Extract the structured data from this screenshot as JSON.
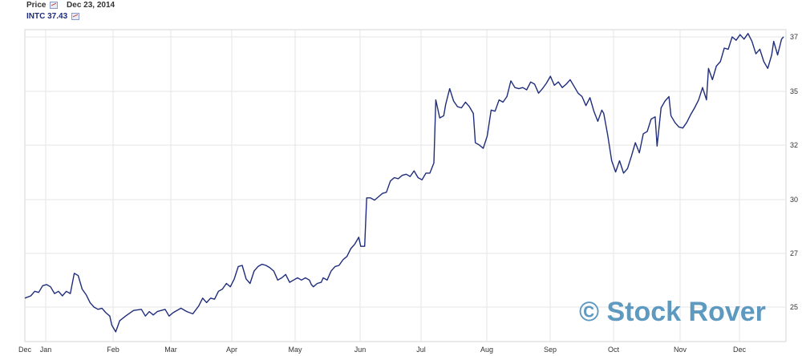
{
  "header": {
    "price_label": "Price",
    "date": "Dec 23, 2014",
    "ticker_label": "INTC 37.43"
  },
  "watermark": "© Stock Rover",
  "colors": {
    "line": "#1f2d7a",
    "grid": "#e6e6e6",
    "axis_text": "#333333",
    "watermark": "#5e99bf"
  },
  "chart_data": {
    "type": "line",
    "title": "",
    "xlabel": "",
    "ylabel": "",
    "ylim": [
      23.8,
      37.25
    ],
    "x_ticks": [
      "Dec",
      "Jan",
      "Feb",
      "Mar",
      "Apr",
      "May",
      "Jun",
      "Jul",
      "Aug",
      "Sep",
      "Oct",
      "Nov",
      "Dec"
    ],
    "y_ticks": [
      25,
      27,
      30,
      32,
      35,
      37
    ],
    "grid": true,
    "series": [
      {
        "name": "INTC",
        "points": [
          [
            0,
            25.4
          ],
          [
            3,
            25.5
          ],
          [
            5,
            25.7
          ],
          [
            7,
            25.65
          ],
          [
            9,
            25.95
          ],
          [
            11,
            26.0
          ],
          [
            13,
            25.9
          ],
          [
            15,
            25.6
          ],
          [
            17,
            25.7
          ],
          [
            19,
            25.5
          ],
          [
            21,
            25.7
          ],
          [
            23,
            25.6
          ],
          [
            25,
            26.5
          ],
          [
            27,
            26.4
          ],
          [
            29,
            25.8
          ],
          [
            31,
            25.55
          ],
          [
            33,
            25.2
          ],
          [
            35,
            25.0
          ],
          [
            37,
            24.9
          ],
          [
            39,
            24.95
          ],
          [
            41,
            24.75
          ],
          [
            43,
            24.6
          ],
          [
            44,
            24.2
          ],
          [
            46,
            23.9
          ],
          [
            48,
            24.4
          ],
          [
            51,
            24.6
          ],
          [
            55,
            24.85
          ],
          [
            59,
            24.9
          ],
          [
            61,
            24.6
          ],
          [
            63,
            24.8
          ],
          [
            65,
            24.65
          ],
          [
            67,
            24.8
          ],
          [
            71,
            24.9
          ],
          [
            73,
            24.6
          ],
          [
            75,
            24.75
          ],
          [
            79,
            24.95
          ],
          [
            82,
            24.8
          ],
          [
            85,
            24.7
          ],
          [
            88,
            25.05
          ],
          [
            90,
            25.4
          ],
          [
            92,
            25.2
          ],
          [
            94,
            25.4
          ],
          [
            96,
            25.35
          ],
          [
            98,
            25.7
          ],
          [
            100,
            25.8
          ],
          [
            102,
            26.05
          ],
          [
            104,
            25.9
          ],
          [
            106,
            26.25
          ],
          [
            108,
            26.8
          ],
          [
            110,
            26.85
          ],
          [
            112,
            26.25
          ],
          [
            114,
            26.05
          ],
          [
            116,
            26.6
          ],
          [
            118,
            26.8
          ],
          [
            120,
            26.9
          ],
          [
            122,
            26.85
          ],
          [
            124,
            26.75
          ],
          [
            126,
            26.6
          ],
          [
            128,
            26.2
          ],
          [
            130,
            26.3
          ],
          [
            132,
            26.45
          ],
          [
            134,
            26.1
          ],
          [
            136,
            26.2
          ],
          [
            138,
            26.3
          ],
          [
            140,
            26.2
          ],
          [
            142,
            26.3
          ],
          [
            144,
            26.2
          ],
          [
            145,
            26.0
          ],
          [
            146,
            25.9
          ],
          [
            148,
            26.05
          ],
          [
            150,
            26.1
          ],
          [
            151,
            26.3
          ],
          [
            153,
            26.2
          ],
          [
            155,
            26.6
          ],
          [
            157,
            26.8
          ],
          [
            159,
            26.85
          ],
          [
            161,
            27.1
          ],
          [
            163,
            27.25
          ],
          [
            165,
            27.6
          ],
          [
            167,
            27.8
          ],
          [
            169,
            28.1
          ],
          [
            170,
            27.7
          ],
          [
            172,
            27.7
          ],
          [
            173,
            29.85
          ],
          [
            175,
            29.85
          ],
          [
            177,
            29.75
          ],
          [
            179,
            29.9
          ],
          [
            181,
            30.05
          ],
          [
            183,
            30.1
          ],
          [
            185,
            30.6
          ],
          [
            187,
            30.75
          ],
          [
            189,
            30.7
          ],
          [
            191,
            30.85
          ],
          [
            193,
            30.9
          ],
          [
            195,
            30.8
          ],
          [
            197,
            31.05
          ],
          [
            199,
            30.75
          ],
          [
            201,
            30.65
          ],
          [
            203,
            30.95
          ],
          [
            205,
            30.95
          ],
          [
            207,
            31.4
          ],
          [
            208,
            34.2
          ],
          [
            210,
            33.4
          ],
          [
            212,
            33.5
          ],
          [
            213,
            34.0
          ],
          [
            215,
            34.7
          ],
          [
            217,
            34.15
          ],
          [
            219,
            33.9
          ],
          [
            221,
            33.85
          ],
          [
            223,
            34.1
          ],
          [
            225,
            33.9
          ],
          [
            227,
            33.6
          ],
          [
            228,
            32.3
          ],
          [
            230,
            32.2
          ],
          [
            232,
            32.05
          ],
          [
            234,
            32.6
          ],
          [
            236,
            33.75
          ],
          [
            238,
            33.7
          ],
          [
            240,
            34.2
          ],
          [
            242,
            34.1
          ],
          [
            244,
            34.35
          ],
          [
            246,
            35.05
          ],
          [
            248,
            34.75
          ],
          [
            250,
            34.7
          ],
          [
            252,
            34.75
          ],
          [
            254,
            34.65
          ],
          [
            256,
            35.0
          ],
          [
            258,
            34.9
          ],
          [
            260,
            34.5
          ],
          [
            262,
            34.7
          ],
          [
            264,
            34.95
          ],
          [
            266,
            35.25
          ],
          [
            268,
            34.85
          ],
          [
            270,
            35.0
          ],
          [
            272,
            34.75
          ],
          [
            274,
            34.9
          ],
          [
            276,
            35.1
          ],
          [
            278,
            34.8
          ],
          [
            280,
            34.5
          ],
          [
            282,
            34.35
          ],
          [
            284,
            33.95
          ],
          [
            286,
            34.3
          ],
          [
            288,
            33.7
          ],
          [
            290,
            33.25
          ],
          [
            292,
            33.75
          ],
          [
            293,
            33.6
          ],
          [
            295,
            32.65
          ],
          [
            297,
            31.5
          ],
          [
            299,
            31.0
          ],
          [
            301,
            31.5
          ],
          [
            303,
            30.95
          ],
          [
            305,
            31.15
          ],
          [
            307,
            31.7
          ],
          [
            309,
            32.3
          ],
          [
            311,
            31.85
          ],
          [
            313,
            32.7
          ],
          [
            315,
            32.8
          ],
          [
            317,
            33.35
          ],
          [
            319,
            33.45
          ],
          [
            320,
            32.15
          ],
          [
            322,
            33.85
          ],
          [
            324,
            34.15
          ],
          [
            326,
            34.35
          ],
          [
            327,
            33.5
          ],
          [
            329,
            33.2
          ],
          [
            331,
            33.0
          ],
          [
            333,
            32.95
          ],
          [
            335,
            33.2
          ],
          [
            337,
            33.55
          ],
          [
            339,
            33.85
          ],
          [
            341,
            34.2
          ],
          [
            343,
            34.75
          ],
          [
            345,
            34.2
          ],
          [
            346,
            35.6
          ],
          [
            348,
            35.1
          ],
          [
            350,
            35.7
          ],
          [
            352,
            35.9
          ],
          [
            354,
            36.5
          ],
          [
            356,
            36.45
          ],
          [
            358,
            37.0
          ],
          [
            360,
            36.85
          ],
          [
            362,
            37.1
          ],
          [
            364,
            36.9
          ],
          [
            366,
            37.15
          ],
          [
            368,
            36.8
          ],
          [
            370,
            36.25
          ],
          [
            372,
            36.45
          ],
          [
            374,
            35.9
          ],
          [
            376,
            35.6
          ],
          [
            378,
            36.2
          ],
          [
            379,
            36.8
          ],
          [
            381,
            36.2
          ],
          [
            383,
            36.9
          ],
          [
            384,
            37.0
          ]
        ]
      }
    ]
  }
}
